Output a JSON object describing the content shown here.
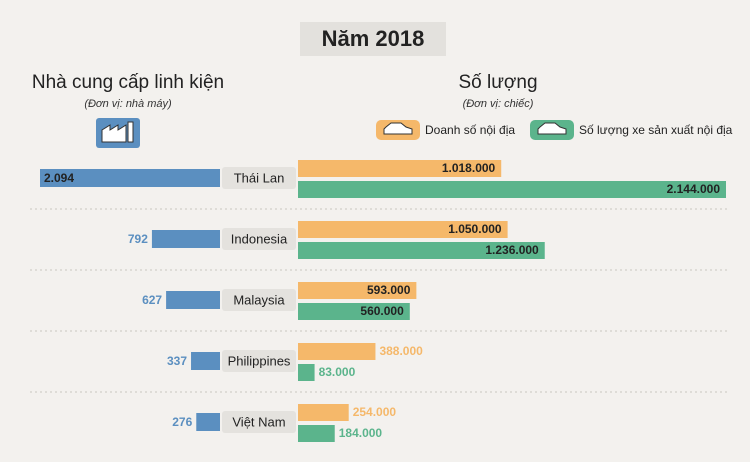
{
  "title": "Năm 2018",
  "chart_data": [
    {
      "type": "hbar-left",
      "title": "Nhà cung cấp linh kiện",
      "subtitle": "(Đơn vị: nhà máy)",
      "categories": [
        "Thái Lan",
        "Indonesia",
        "Malaysia",
        "Philippines",
        "Việt Nam"
      ],
      "values": [
        2094,
        792,
        627,
        337,
        276
      ],
      "value_labels": [
        "2.094",
        "792",
        "627",
        "337",
        "276"
      ],
      "color": "#5b8fc0"
    },
    {
      "type": "hbar-right",
      "title": "Số lượng",
      "subtitle": "(Đơn vị: chiếc)",
      "series": [
        {
          "name": "Doanh số nội địa",
          "color": "#f5b86a",
          "values": [
            1018000,
            1050000,
            593000,
            388000,
            254000
          ],
          "value_labels": [
            "1.018.000",
            "1.050.000",
            "593.000",
            "388.000",
            "254.000"
          ]
        },
        {
          "name": "Số lượng xe sản xuất nội địa",
          "color": "#5bb48c",
          "values": [
            2144000,
            1236000,
            560000,
            83000,
            184000
          ],
          "value_labels": [
            "2.144.000",
            "1.236.000",
            "560.000",
            "83.000",
            "184.000"
          ]
        }
      ]
    }
  ]
}
